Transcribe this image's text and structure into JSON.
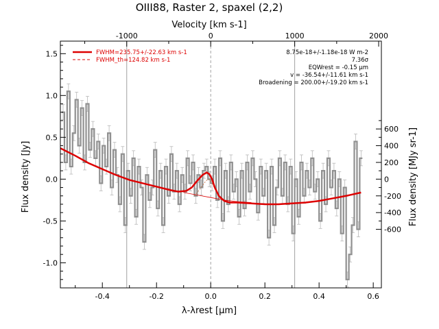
{
  "chart_data": {
    "type": "line",
    "title": "OIII88, Raster 2, spaxel (2,2)",
    "xlabel": "λ-λrest [μm]",
    "ylabel": "Flux density [Jy]",
    "top_axis_label": "Velocity [km s-1]",
    "right_axis_label": "Flux density [MJy sr-1]",
    "xlim": [
      -0.555,
      0.63
    ],
    "ylim": [
      -1.3,
      1.65
    ],
    "x_ticks": [
      "-0.4",
      "-0.2",
      "0.0",
      "0.2",
      "0.4",
      "0.6"
    ],
    "y_ticks": [
      "-1.0",
      "-0.5",
      "0.0",
      "0.5",
      "1.0",
      "1.5"
    ],
    "top_ticks": [
      "-1000",
      "0",
      "1000",
      "2000"
    ],
    "right_ticks": [
      "-600",
      "-400",
      "-200",
      "0",
      "200",
      "400",
      "600"
    ],
    "colors": {
      "data": "#909090",
      "fit": "#dd0000",
      "vline": "#a0a0a0"
    },
    "legend": [
      {
        "label": "FWHM=235.75+/-22.63 km s-1",
        "style": "solid"
      },
      {
        "label": "FWHM_th=124.82 km s-1",
        "style": "dashed"
      }
    ],
    "annotations": [
      "8.75e-18+/-1.18e-18 W m-2",
      "7.36σ",
      "EQWrest = -0.15 μm",
      "v = -36.54+/-11.61 km s-1",
      "Broadening = 200.00+/-19.20 km s-1"
    ],
    "vertical_lines_x": [
      -0.31,
      0.0,
      0.31
    ],
    "series": [
      {
        "name": "Flux density",
        "type": "step",
        "x": [
          -0.545,
          -0.535,
          -0.525,
          -0.515,
          -0.505,
          -0.495,
          -0.485,
          -0.475,
          -0.465,
          -0.455,
          -0.445,
          -0.435,
          -0.425,
          -0.415,
          -0.405,
          -0.395,
          -0.385,
          -0.375,
          -0.365,
          -0.355,
          -0.345,
          -0.335,
          -0.325,
          -0.315,
          -0.305,
          -0.295,
          -0.285,
          -0.275,
          -0.265,
          -0.255,
          -0.245,
          -0.235,
          -0.225,
          -0.215,
          -0.205,
          -0.195,
          -0.185,
          -0.175,
          -0.165,
          -0.155,
          -0.145,
          -0.135,
          -0.125,
          -0.115,
          -0.105,
          -0.095,
          -0.085,
          -0.075,
          -0.065,
          -0.055,
          -0.045,
          -0.035,
          -0.025,
          -0.015,
          -0.005,
          0.005,
          0.015,
          0.025,
          0.035,
          0.045,
          0.055,
          0.065,
          0.075,
          0.085,
          0.095,
          0.105,
          0.115,
          0.125,
          0.135,
          0.145,
          0.155,
          0.165,
          0.175,
          0.185,
          0.195,
          0.205,
          0.215,
          0.225,
          0.235,
          0.245,
          0.255,
          0.265,
          0.275,
          0.285,
          0.295,
          0.305,
          0.315,
          0.325,
          0.335,
          0.345,
          0.355,
          0.365,
          0.375,
          0.385,
          0.395,
          0.405,
          0.415,
          0.425,
          0.435,
          0.445,
          0.455,
          0.465,
          0.475,
          0.485,
          0.495,
          0.505,
          0.515,
          0.525,
          0.535,
          0.545,
          0.555
        ],
        "y": [
          0.8,
          0.2,
          1.05,
          0.15,
          0.55,
          0.95,
          0.4,
          0.85,
          0.2,
          0.9,
          0.35,
          0.6,
          0.25,
          0.45,
          -0.05,
          0.4,
          0.15,
          0.55,
          -0.1,
          0.35,
          0.05,
          -0.3,
          0.3,
          -0.55,
          0.1,
          -0.2,
          0.25,
          -0.45,
          0.15,
          -0.1,
          -0.75,
          0.05,
          -0.25,
          -0.1,
          0.35,
          -0.35,
          0.1,
          -0.55,
          0.15,
          -0.2,
          0.3,
          -0.15,
          0.1,
          -0.3,
          0.05,
          -0.15,
          0.25,
          -0.05,
          0.2,
          -0.2,
          0.05,
          -0.1,
          0.1,
          0.15,
          0.0,
          -0.05,
          0.15,
          -0.25,
          0.25,
          -0.5,
          0.1,
          -0.3,
          0.2,
          -0.15,
          0.0,
          -0.45,
          0.1,
          -0.35,
          0.2,
          -0.15,
          0.25,
          0.0,
          -0.4,
          0.15,
          -0.2,
          0.1,
          -0.7,
          0.15,
          -0.55,
          -0.1,
          0.25,
          -0.2,
          0.2,
          -0.3,
          0.15,
          -0.65,
          0.0,
          -0.45,
          0.2,
          -0.2,
          0.1,
          -0.1,
          0.25,
          -0.15,
          0.0,
          -0.5,
          0.1,
          -0.3,
          0.25,
          -0.1,
          0.1,
          -0.35,
          0.0,
          -0.65,
          -0.1,
          -1.2,
          -0.9,
          -0.55,
          0.45,
          -0.6,
          0.25
        ],
        "err": 0.09
      },
      {
        "name": "Fit",
        "type": "line",
        "x": [
          -0.555,
          -0.5,
          -0.45,
          -0.4,
          -0.35,
          -0.3,
          -0.25,
          -0.2,
          -0.15,
          -0.12,
          -0.09,
          -0.07,
          -0.05,
          -0.03,
          -0.015,
          -0.005,
          0.005,
          0.015,
          0.03,
          0.05,
          0.07,
          0.1,
          0.15,
          0.2,
          0.25,
          0.3,
          0.35,
          0.4,
          0.45,
          0.5,
          0.555
        ],
        "y": [
          0.37,
          0.28,
          0.19,
          0.12,
          0.05,
          -0.01,
          -0.05,
          -0.09,
          -0.13,
          -0.15,
          -0.14,
          -0.1,
          -0.02,
          0.05,
          0.08,
          0.06,
          0.0,
          -0.1,
          -0.2,
          -0.26,
          -0.28,
          -0.28,
          -0.29,
          -0.3,
          -0.3,
          -0.29,
          -0.28,
          -0.26,
          -0.23,
          -0.2,
          -0.16
        ]
      },
      {
        "name": "Continuum",
        "type": "line",
        "x": [
          -0.1,
          -0.05,
          0.0,
          0.05,
          0.1,
          0.15
        ],
        "y": [
          -0.16,
          -0.19,
          -0.22,
          -0.25,
          -0.27,
          -0.28
        ]
      },
      {
        "name": "Thermal profile",
        "type": "line",
        "x": [
          -0.06,
          -0.04,
          -0.02,
          -0.01,
          0.0,
          0.01,
          0.02,
          0.04
        ],
        "y": [
          -0.2,
          -0.12,
          -0.03,
          0.0,
          -0.02,
          -0.08,
          -0.15,
          -0.25
        ]
      }
    ]
  }
}
